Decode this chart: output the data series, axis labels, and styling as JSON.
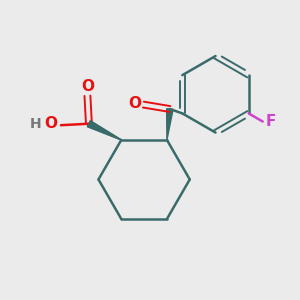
{
  "background_color": "#ebebeb",
  "bond_color": "#3a6b6b",
  "o_color": "#e81010",
  "f_color": "#cc44cc",
  "h_color": "#777777",
  "lw": 1.8,
  "dlw": 1.4,
  "figsize": [
    3.0,
    3.0
  ],
  "dpi": 100,
  "xlim": [
    0,
    10
  ],
  "ylim": [
    0,
    10
  ]
}
